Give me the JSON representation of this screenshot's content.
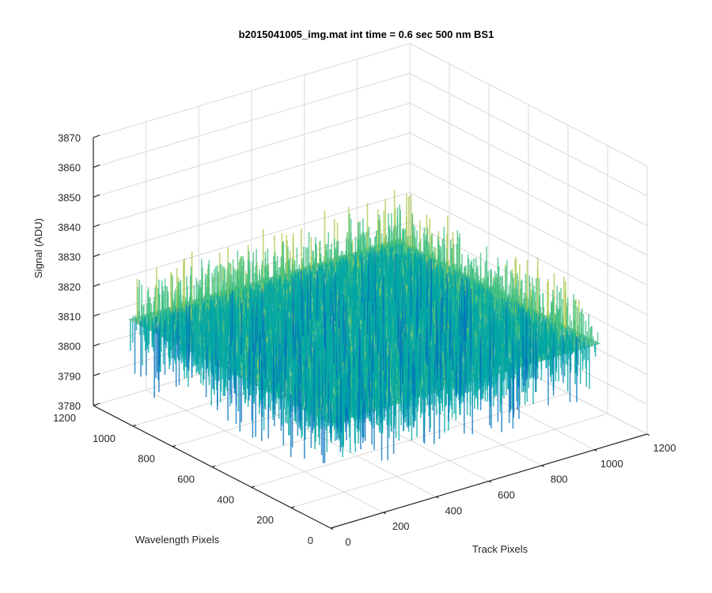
{
  "chart_data": {
    "type": "surface",
    "title": "b2015041005_img.mat int time = 0.6 sec  500 nm BS1",
    "xlabel": "Track Pixels",
    "ylabel": "Wavelength Pixels",
    "zlabel": "Signal (ADU)",
    "x_ticks": [
      "0",
      "200",
      "400",
      "600",
      "800",
      "1000",
      "1200"
    ],
    "y_ticks": [
      "0",
      "200",
      "400",
      "600",
      "800",
      "1000",
      "1200"
    ],
    "z_ticks": [
      "3780",
      "3790",
      "3800",
      "3810",
      "3820",
      "3830",
      "3840",
      "3850",
      "3860",
      "3870"
    ],
    "xlim": [
      0,
      1200
    ],
    "ylim": [
      0,
      1200
    ],
    "zlim": [
      3780,
      3870
    ],
    "surface": {
      "x_range": [
        0,
        1024
      ],
      "y_range": [
        0,
        1024
      ],
      "mean_signal": 3815,
      "noise_range": [
        3785,
        3860
      ],
      "colormap": [
        "#0072bd",
        "#00a6a6",
        "#3fbf7f",
        "#a8c84a",
        "#e6c84c"
      ]
    },
    "grid": true
  }
}
